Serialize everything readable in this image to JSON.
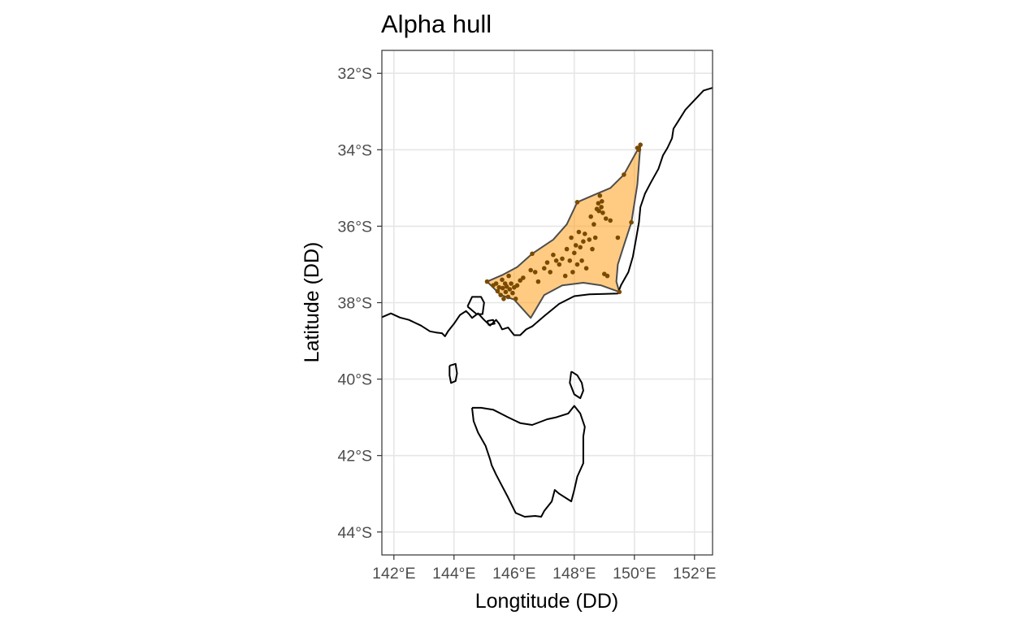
{
  "chart_data": {
    "type": "scatter",
    "title": "Alpha hull",
    "xlabel": "Longtitude (DD)",
    "ylabel": "Latitude (DD)",
    "xlim": [
      141.6,
      152.6
    ],
    "ylim": [
      -44.6,
      -31.4
    ],
    "x_ticks": [
      {
        "value": 142,
        "label": "142°E"
      },
      {
        "value": 144,
        "label": "144°E"
      },
      {
        "value": 146,
        "label": "146°E"
      },
      {
        "value": 148,
        "label": "148°E"
      },
      {
        "value": 150,
        "label": "150°E"
      },
      {
        "value": 152,
        "label": "152°E"
      }
    ],
    "y_ticks": [
      {
        "value": -32,
        "label": "32°S"
      },
      {
        "value": -34,
        "label": "34°S"
      },
      {
        "value": -36,
        "label": "36°S"
      },
      {
        "value": -38,
        "label": "38°S"
      },
      {
        "value": -40,
        "label": "40°S"
      },
      {
        "value": -42,
        "label": "42°S"
      },
      {
        "value": -44,
        "label": "44°S"
      }
    ],
    "grid": true,
    "colors": {
      "hull_fill": "#ffa930",
      "hull_stroke": "#4d4d4d",
      "points": "#7a4a00",
      "coastline": "#000000",
      "grid": "#e6e6e6",
      "panel_border": "#333333"
    },
    "hull_vertices": [
      [
        145.1,
        -37.45
      ],
      [
        145.6,
        -37.28
      ],
      [
        146.1,
        -37.07
      ],
      [
        146.6,
        -36.72
      ],
      [
        147.3,
        -36.35
      ],
      [
        147.75,
        -35.95
      ],
      [
        148.1,
        -35.37
      ],
      [
        148.6,
        -35.2
      ],
      [
        149.2,
        -35.0
      ],
      [
        149.65,
        -34.65
      ],
      [
        150.2,
        -33.87
      ],
      [
        150.1,
        -34.9
      ],
      [
        149.9,
        -35.9
      ],
      [
        149.65,
        -36.5
      ],
      [
        149.45,
        -37.0
      ],
      [
        149.4,
        -37.45
      ],
      [
        149.5,
        -37.72
      ],
      [
        148.9,
        -37.55
      ],
      [
        148.3,
        -37.48
      ],
      [
        147.6,
        -37.55
      ],
      [
        147.0,
        -37.8
      ],
      [
        146.55,
        -38.4
      ],
      [
        146.0,
        -37.92
      ],
      [
        145.55,
        -37.8
      ],
      [
        145.1,
        -37.45
      ]
    ],
    "points": [
      [
        145.1,
        -37.45
      ],
      [
        145.3,
        -37.55
      ],
      [
        145.4,
        -37.5
      ],
      [
        145.45,
        -37.7
      ],
      [
        145.5,
        -37.6
      ],
      [
        145.55,
        -37.8
      ],
      [
        145.6,
        -37.4
      ],
      [
        145.62,
        -37.62
      ],
      [
        145.65,
        -37.9
      ],
      [
        145.7,
        -37.5
      ],
      [
        145.72,
        -37.72
      ],
      [
        145.75,
        -37.58
      ],
      [
        145.8,
        -37.85
      ],
      [
        145.82,
        -37.3
      ],
      [
        145.85,
        -37.65
      ],
      [
        145.9,
        -37.5
      ],
      [
        145.95,
        -37.75
      ],
      [
        146.0,
        -37.6
      ],
      [
        146.05,
        -37.9
      ],
      [
        146.1,
        -37.55
      ],
      [
        146.2,
        -37.42
      ],
      [
        146.3,
        -37.35
      ],
      [
        146.55,
        -37.15
      ],
      [
        146.6,
        -36.72
      ],
      [
        146.7,
        -37.2
      ],
      [
        146.8,
        -37.45
      ],
      [
        147.0,
        -37.1
      ],
      [
        147.1,
        -36.95
      ],
      [
        147.2,
        -37.2
      ],
      [
        147.3,
        -36.75
      ],
      [
        147.4,
        -36.9
      ],
      [
        147.5,
        -37.0
      ],
      [
        147.6,
        -36.85
      ],
      [
        147.7,
        -37.3
      ],
      [
        147.75,
        -36.6
      ],
      [
        147.85,
        -36.9
      ],
      [
        147.9,
        -36.3
      ],
      [
        147.95,
        -37.2
      ],
      [
        148.0,
        -36.7
      ],
      [
        148.05,
        -36.5
      ],
      [
        148.1,
        -35.37
      ],
      [
        148.1,
        -37.0
      ],
      [
        148.15,
        -36.15
      ],
      [
        148.2,
        -36.55
      ],
      [
        148.25,
        -36.9
      ],
      [
        148.3,
        -36.4
      ],
      [
        148.35,
        -36.2
      ],
      [
        148.4,
        -37.1
      ],
      [
        148.5,
        -36.35
      ],
      [
        148.55,
        -35.75
      ],
      [
        148.6,
        -36.6
      ],
      [
        148.65,
        -35.95
      ],
      [
        148.7,
        -36.3
      ],
      [
        148.75,
        -35.55
      ],
      [
        148.8,
        -35.4
      ],
      [
        148.82,
        -35.6
      ],
      [
        148.85,
        -35.2
      ],
      [
        148.9,
        -35.5
      ],
      [
        148.92,
        -35.35
      ],
      [
        148.95,
        -35.65
      ],
      [
        149.0,
        -37.25
      ],
      [
        149.05,
        -35.8
      ],
      [
        149.1,
        -37.3
      ],
      [
        149.2,
        -35.85
      ],
      [
        149.45,
        -36.3
      ],
      [
        149.5,
        -37.72
      ],
      [
        149.65,
        -34.65
      ],
      [
        149.9,
        -35.9
      ],
      [
        150.1,
        -33.95
      ],
      [
        150.2,
        -33.87
      ],
      [
        150.15,
        -34.0
      ]
    ],
    "coastline": {
      "mainland": [
        [
          141.6,
          -38.38
        ],
        [
          141.9,
          -38.28
        ],
        [
          142.2,
          -38.39
        ],
        [
          142.5,
          -38.45
        ],
        [
          142.9,
          -38.6
        ],
        [
          143.2,
          -38.75
        ],
        [
          143.4,
          -38.78
        ],
        [
          143.6,
          -38.8
        ],
        [
          143.7,
          -38.88
        ],
        [
          143.8,
          -38.75
        ],
        [
          144.0,
          -38.55
        ],
        [
          144.2,
          -38.32
        ],
        [
          144.4,
          -38.22
        ],
        [
          144.5,
          -38.3
        ],
        [
          144.6,
          -38.4
        ],
        [
          144.8,
          -38.28
        ],
        [
          145.0,
          -38.45
        ],
        [
          145.2,
          -38.6
        ],
        [
          145.4,
          -38.45
        ],
        [
          145.5,
          -38.55
        ],
        [
          145.6,
          -38.7
        ],
        [
          145.8,
          -38.65
        ],
        [
          146.0,
          -38.85
        ],
        [
          146.2,
          -38.85
        ],
        [
          146.4,
          -38.7
        ],
        [
          146.6,
          -38.62
        ],
        [
          147.0,
          -38.35
        ],
        [
          147.5,
          -38.03
        ],
        [
          148.0,
          -37.83
        ],
        [
          148.5,
          -37.78
        ],
        [
          149.0,
          -37.77
        ],
        [
          149.45,
          -37.76
        ],
        [
          149.55,
          -37.55
        ],
        [
          149.8,
          -37.2
        ],
        [
          149.95,
          -36.8
        ],
        [
          150.05,
          -36.35
        ],
        [
          150.15,
          -35.9
        ],
        [
          150.2,
          -35.5
        ],
        [
          150.35,
          -35.15
        ],
        [
          150.55,
          -34.85
        ],
        [
          150.8,
          -34.5
        ],
        [
          150.95,
          -34.15
        ],
        [
          151.1,
          -33.95
        ],
        [
          151.25,
          -33.7
        ],
        [
          151.3,
          -33.45
        ],
        [
          151.5,
          -33.2
        ],
        [
          151.7,
          -32.95
        ],
        [
          152.0,
          -32.7
        ],
        [
          152.3,
          -32.45
        ],
        [
          152.6,
          -32.38
        ]
      ],
      "tasmania": [
        [
          144.6,
          -40.75
        ],
        [
          144.65,
          -41.1
        ],
        [
          144.8,
          -41.4
        ],
        [
          145.05,
          -41.75
        ],
        [
          145.2,
          -42.1
        ],
        [
          145.25,
          -42.25
        ],
        [
          145.4,
          -42.5
        ],
        [
          145.6,
          -42.8
        ],
        [
          145.8,
          -43.1
        ],
        [
          146.05,
          -43.5
        ],
        [
          146.35,
          -43.6
        ],
        [
          146.7,
          -43.58
        ],
        [
          146.9,
          -43.6
        ],
        [
          147.0,
          -43.45
        ],
        [
          147.25,
          -43.2
        ],
        [
          147.35,
          -42.9
        ],
        [
          147.5,
          -43.0
        ],
        [
          147.9,
          -43.2
        ],
        [
          148.0,
          -42.9
        ],
        [
          148.1,
          -42.55
        ],
        [
          148.3,
          -42.2
        ],
        [
          148.3,
          -41.9
        ],
        [
          148.3,
          -41.5
        ],
        [
          148.35,
          -41.25
        ],
        [
          148.2,
          -40.9
        ],
        [
          148.0,
          -40.7
        ],
        [
          147.8,
          -40.9
        ],
        [
          147.4,
          -41.0
        ],
        [
          147.1,
          -41.05
        ],
        [
          146.6,
          -41.2
        ],
        [
          146.2,
          -41.15
        ],
        [
          145.8,
          -41.0
        ],
        [
          145.3,
          -40.8
        ],
        [
          144.9,
          -40.75
        ],
        [
          144.6,
          -40.75
        ]
      ],
      "king_island": [
        [
          143.85,
          -39.65
        ],
        [
          144.05,
          -39.6
        ],
        [
          144.1,
          -39.85
        ],
        [
          144.05,
          -40.05
        ],
        [
          143.9,
          -40.1
        ],
        [
          143.85,
          -39.9
        ],
        [
          143.85,
          -39.65
        ]
      ],
      "flinders_island": [
        [
          147.9,
          -39.8
        ],
        [
          148.1,
          -39.9
        ],
        [
          148.25,
          -40.1
        ],
        [
          148.3,
          -40.3
        ],
        [
          148.2,
          -40.5
        ],
        [
          148.0,
          -40.4
        ],
        [
          147.85,
          -40.1
        ],
        [
          147.9,
          -39.8
        ]
      ],
      "phillip_island": [
        [
          145.1,
          -38.48
        ],
        [
          145.3,
          -38.45
        ],
        [
          145.35,
          -38.55
        ],
        [
          145.15,
          -38.58
        ],
        [
          145.1,
          -38.48
        ]
      ],
      "port_phillip": [
        [
          144.45,
          -38.1
        ],
        [
          144.6,
          -37.85
        ],
        [
          144.9,
          -37.85
        ],
        [
          145.0,
          -38.0
        ],
        [
          144.95,
          -38.3
        ],
        [
          144.75,
          -38.3
        ],
        [
          144.45,
          -38.1
        ]
      ]
    }
  }
}
